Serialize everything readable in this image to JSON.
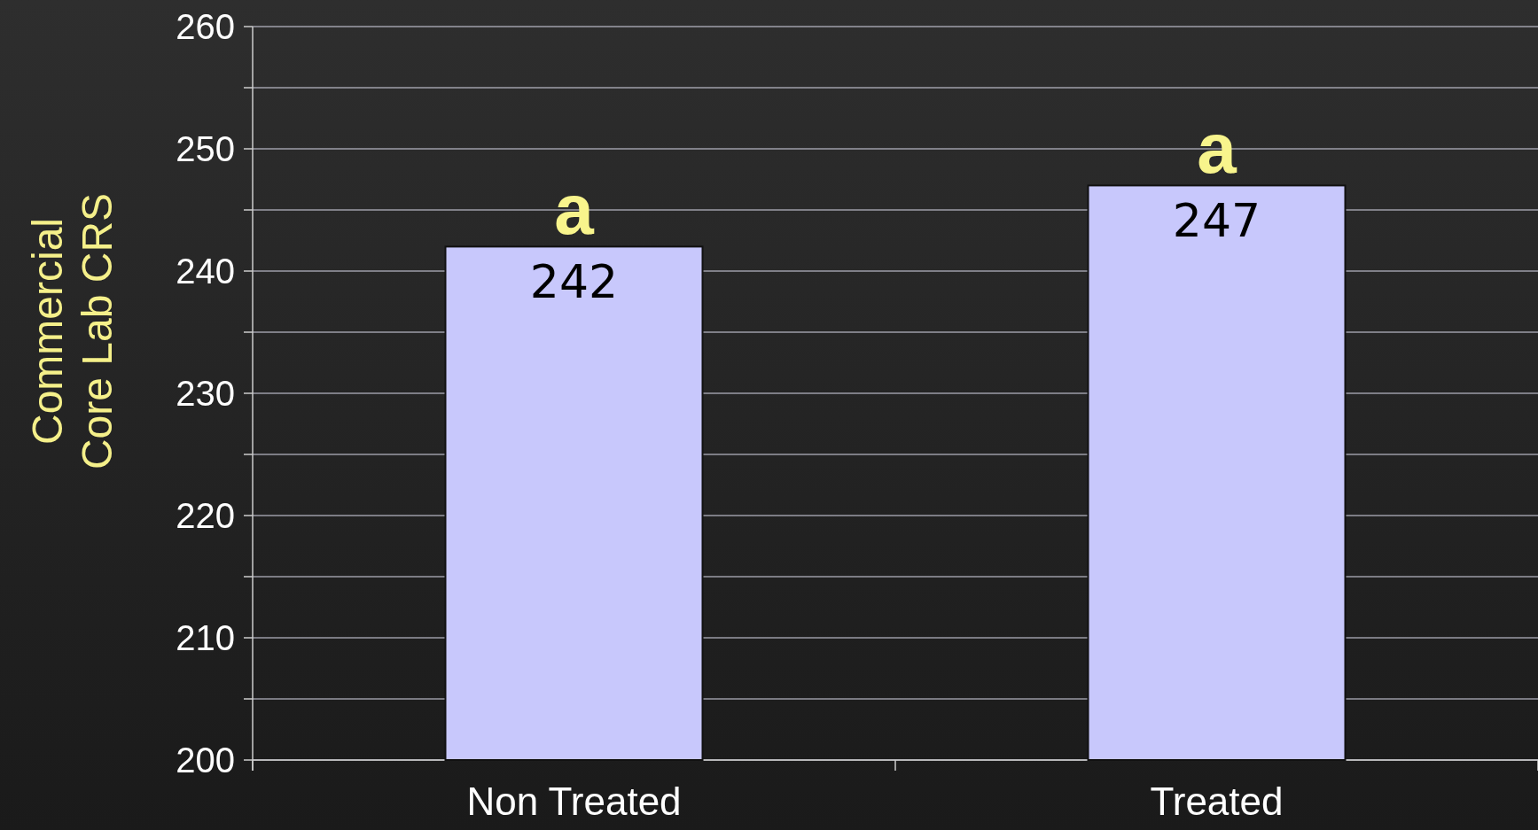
{
  "chart_data": {
    "type": "bar",
    "ylabel": "Commercial\nCore Lab CRS",
    "categories": [
      "Non Treated",
      "Treated"
    ],
    "values": [
      242,
      247
    ],
    "color": "#c8c8fc",
    "ylim": [
      200,
      260
    ],
    "yticks": [
      200,
      {
        "value": 205,
        "label": null
      },
      210,
      {
        "value": 215,
        "label": null
      },
      220,
      {
        "value": 225,
        "label": null
      },
      230,
      {
        "value": 235,
        "label": null
      },
      240,
      {
        "value": 245,
        "label": null
      },
      250,
      {
        "value": 255,
        "label": null
      },
      260
    ],
    "grid": true,
    "data_labels": true,
    "annotations": [
      {
        "text": "a",
        "x": "Non Treated",
        "y": 242
      },
      {
        "text": "a",
        "x": "Treated",
        "y": 247
      }
    ]
  }
}
